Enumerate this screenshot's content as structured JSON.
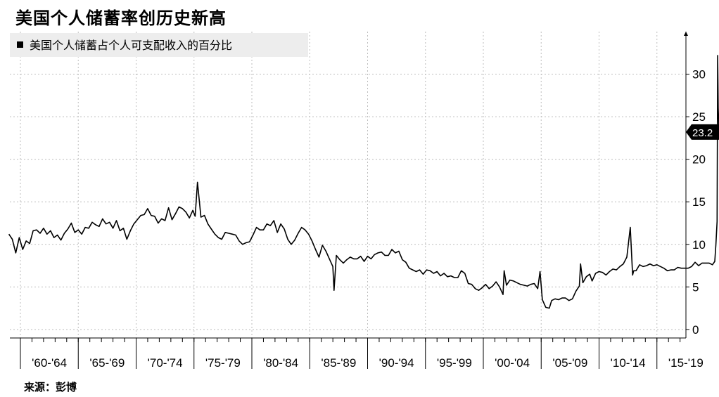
{
  "title": "美国个人储蓄率创历史新高",
  "source": "来源：彭博",
  "chart_data": {
    "type": "line",
    "legend": {
      "label": "美国个人储蓄占个人可支配收入的百分比",
      "position": "top-left"
    },
    "x_categories": [
      "'60-'64",
      "'65-'69",
      "'70-'74",
      "'75-'79",
      "'80-'84",
      "'85-'89",
      "'90-'94",
      "'95-'99",
      "'00-'04",
      "'05-'09",
      "'10-'14",
      "'15-'19"
    ],
    "y_axis": {
      "position": "right",
      "ylim": [
        -1,
        35
      ],
      "ticks": [
        0,
        5,
        10,
        15,
        20,
        25,
        30
      ],
      "grid": true
    },
    "x_grid": true,
    "last_value_label": "23.2",
    "series": [
      {
        "x": [
          1959.0,
          1959.3,
          1959.6,
          1959.9,
          1960.2,
          1960.5,
          1960.8,
          1961.1,
          1961.4,
          1961.7,
          1962.0,
          1962.3,
          1962.6,
          1962.9,
          1963.2,
          1963.5,
          1963.8,
          1964.1,
          1964.4,
          1964.7,
          1965.0,
          1965.3,
          1965.6,
          1965.9,
          1966.2,
          1966.5,
          1966.8,
          1967.1,
          1967.4,
          1967.7,
          1968.0,
          1968.3,
          1968.6,
          1968.9,
          1969.2,
          1969.5,
          1969.8,
          1970.1,
          1970.4,
          1970.7,
          1971.0,
          1971.3,
          1971.6,
          1971.9,
          1972.2,
          1972.5,
          1972.8,
          1973.1,
          1973.4,
          1973.7,
          1974.0,
          1974.3,
          1974.6,
          1974.9,
          1975.1,
          1975.3,
          1975.6,
          1975.9,
          1976.2,
          1976.5,
          1976.8,
          1977.1,
          1977.4,
          1977.7,
          1978.0,
          1978.3,
          1978.6,
          1978.9,
          1979.2,
          1979.5,
          1979.8,
          1980.1,
          1980.4,
          1980.7,
          1981.0,
          1981.3,
          1981.6,
          1981.9,
          1982.2,
          1982.5,
          1982.8,
          1983.1,
          1983.4,
          1983.7,
          1984.0,
          1984.3,
          1984.6,
          1984.9,
          1985.2,
          1985.5,
          1985.8,
          1986.1,
          1986.4,
          1986.7,
          1987.0,
          1987.1,
          1987.3,
          1987.6,
          1987.9,
          1988.2,
          1988.5,
          1988.8,
          1989.1,
          1989.4,
          1989.7,
          1990.0,
          1990.3,
          1990.6,
          1990.9,
          1991.2,
          1991.5,
          1991.8,
          1992.1,
          1992.4,
          1992.7,
          1993.0,
          1993.3,
          1993.6,
          1993.9,
          1994.2,
          1994.5,
          1994.8,
          1995.1,
          1995.4,
          1995.7,
          1996.0,
          1996.3,
          1996.6,
          1996.9,
          1997.2,
          1997.5,
          1997.8,
          1998.1,
          1998.4,
          1998.7,
          1999.0,
          1999.3,
          1999.6,
          1999.9,
          2000.2,
          2000.5,
          2000.8,
          2001.1,
          2001.4,
          2001.7,
          2001.8,
          2002.0,
          2002.3,
          2002.6,
          2002.9,
          2003.2,
          2003.5,
          2003.8,
          2004.1,
          2004.4,
          2004.7,
          2004.9,
          2005.1,
          2005.4,
          2005.7,
          2005.9,
          2006.2,
          2006.5,
          2006.8,
          2007.1,
          2007.4,
          2007.7,
          2008.0,
          2008.3,
          2008.4,
          2008.6,
          2008.9,
          2009.2,
          2009.4,
          2009.7,
          2010.0,
          2010.3,
          2010.6,
          2010.9,
          2011.2,
          2011.5,
          2011.8,
          2012.1,
          2012.4,
          2012.7,
          2012.9,
          2013.0,
          2013.2,
          2013.5,
          2013.8,
          2014.1,
          2014.4,
          2014.7,
          2015.0,
          2015.3,
          2015.6,
          2015.9,
          2016.2,
          2016.5,
          2016.8,
          2017.1,
          2017.4,
          2017.7,
          2018.0,
          2018.3,
          2018.6,
          2018.9,
          2019.2,
          2019.5,
          2019.8,
          2020.0,
          2020.1,
          2020.2,
          2020.25,
          2020.3,
          2020.35,
          2020.4
        ],
        "values": [
          11.2,
          10.6,
          9.0,
          10.8,
          9.4,
          10.4,
          10.1,
          11.6,
          11.7,
          11.3,
          11.9,
          11.2,
          11.6,
          10.8,
          11.1,
          10.5,
          11.3,
          11.8,
          12.5,
          11.4,
          11.7,
          11.2,
          12.0,
          11.9,
          12.6,
          12.3,
          12.1,
          13.0,
          12.4,
          12.6,
          11.9,
          12.8,
          11.6,
          11.9,
          10.6,
          11.6,
          12.4,
          12.9,
          13.4,
          13.5,
          14.2,
          13.4,
          13.3,
          12.5,
          13.0,
          12.8,
          14.3,
          12.9,
          13.6,
          14.4,
          14.2,
          13.8,
          13.1,
          14.0,
          13.3,
          17.3,
          13.2,
          13.4,
          12.4,
          11.8,
          11.2,
          10.8,
          10.6,
          11.4,
          11.3,
          11.2,
          11.1,
          10.4,
          10.0,
          10.2,
          10.3,
          11.1,
          12.0,
          11.7,
          11.7,
          12.4,
          12.2,
          12.8,
          11.4,
          12.4,
          11.8,
          10.6,
          10.0,
          10.5,
          11.3,
          12.0,
          11.7,
          11.2,
          10.4,
          9.4,
          8.5,
          9.9,
          9.2,
          8.3,
          7.4,
          4.6,
          8.7,
          8.2,
          7.8,
          8.2,
          8.5,
          8.3,
          8.3,
          8.6,
          8.0,
          8.6,
          8.3,
          8.8,
          9.0,
          9.1,
          8.7,
          8.7,
          9.4,
          9.0,
          9.2,
          8.2,
          7.9,
          7.2,
          7.0,
          6.8,
          7.0,
          6.5,
          7.0,
          6.9,
          6.6,
          6.8,
          6.3,
          6.6,
          6.2,
          6.3,
          6.1,
          6.1,
          6.9,
          6.6,
          5.4,
          5.3,
          4.8,
          4.6,
          4.9,
          5.3,
          4.8,
          5.1,
          5.6,
          5.0,
          4.1,
          6.9,
          5.2,
          5.8,
          5.7,
          5.5,
          5.3,
          5.2,
          5.1,
          5.3,
          5.4,
          4.8,
          6.8,
          3.5,
          2.6,
          2.5,
          3.4,
          3.6,
          3.5,
          3.7,
          3.7,
          3.4,
          3.6,
          4.5,
          5.1,
          7.7,
          5.5,
          6.2,
          6.5,
          5.7,
          6.6,
          6.8,
          6.7,
          6.4,
          6.8,
          7.1,
          7.0,
          7.4,
          7.7,
          8.5,
          12.0,
          6.4,
          6.9,
          6.9,
          7.6,
          7.4,
          7.5,
          7.7,
          7.5,
          7.6,
          7.4,
          7.2,
          6.9,
          7.0,
          7.0,
          7.3,
          7.2,
          7.2,
          7.2,
          7.4,
          7.9,
          7.5,
          7.8,
          7.8,
          7.8,
          7.6,
          8.0,
          10.0,
          12.7,
          32.2,
          26.0,
          23.8,
          23.2
        ]
      }
    ]
  }
}
